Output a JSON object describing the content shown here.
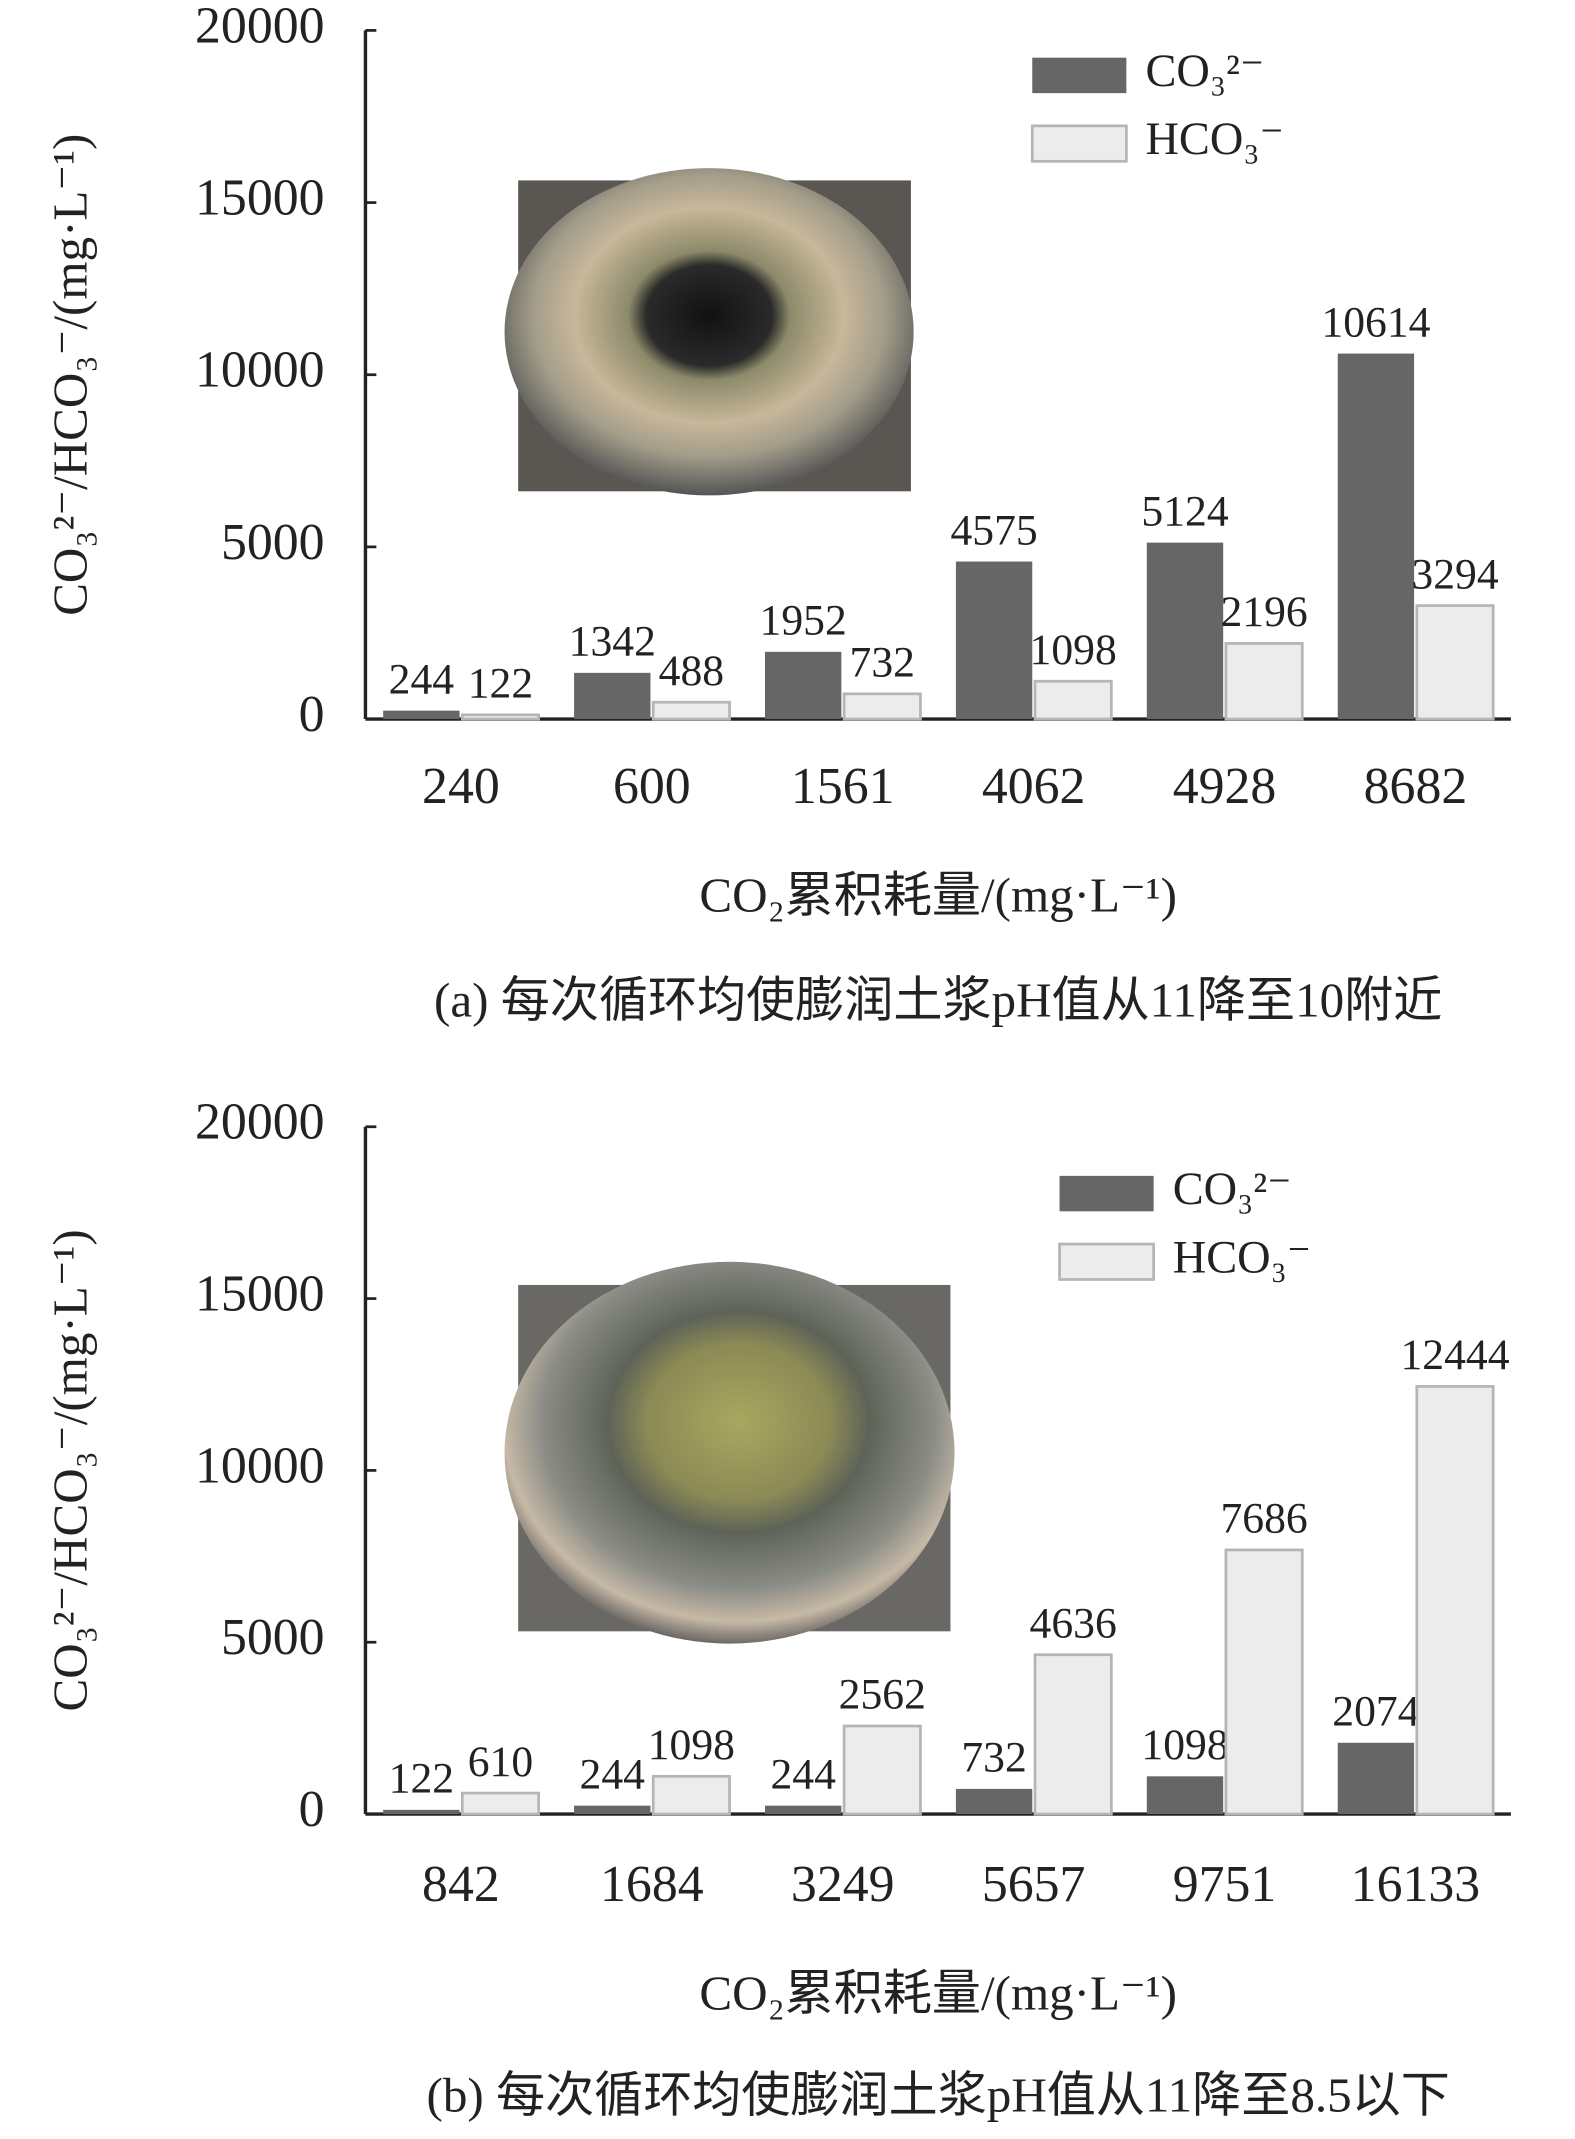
{
  "chart_data": [
    {
      "type": "bar",
      "categories": [
        "240",
        "600",
        "1561",
        "4062",
        "4928",
        "8682"
      ],
      "series": [
        {
          "name": "CO₃²⁻",
          "color": "#666666",
          "values": [
            244,
            1342,
            1952,
            4575,
            5124,
            10614
          ]
        },
        {
          "name": "HCO₃⁻",
          "color": "#ececec",
          "values": [
            122,
            488,
            732,
            1098,
            2196,
            3294
          ]
        }
      ],
      "ylim": [
        0,
        20000
      ],
      "yticks": [
        0,
        5000,
        10000,
        15000,
        20000
      ],
      "ylabel": "CO₃²⁻/HCO₃⁻/(mg·L⁻¹)",
      "xlabel": "CO₂累积耗量/(mg·L⁻¹)",
      "caption": "(a) 每次循环均使膨润土浆pH值从11降至10附近",
      "legend": "upper right"
    },
    {
      "type": "bar",
      "categories": [
        "842",
        "1684",
        "3249",
        "5657",
        "9751",
        "16133"
      ],
      "series": [
        {
          "name": "CO₃²⁻",
          "color": "#666666",
          "values": [
            122,
            244,
            244,
            732,
            1098,
            2074
          ]
        },
        {
          "name": "HCO₃⁻",
          "color": "#ececec",
          "values": [
            610,
            1098,
            2562,
            4636,
            7686,
            12444
          ]
        }
      ],
      "ylim": [
        0,
        20000
      ],
      "yticks": [
        0,
        5000,
        10000,
        15000,
        20000
      ],
      "ylabel": "CO₃²⁻/HCO₃⁻/(mg·L⁻¹)",
      "xlabel": "CO₂累积耗量/(mg·L⁻¹)",
      "caption": "(b) 每次循环均使膨润土浆pH值从11降至8.5以下",
      "legend": "upper right"
    }
  ]
}
